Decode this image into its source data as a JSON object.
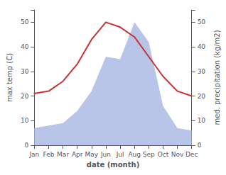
{
  "chart_data": {
    "type": "line",
    "categories": [
      "Jan",
      "Feb",
      "Mar",
      "Apr",
      "May",
      "Jun",
      "Jul",
      "Aug",
      "Sep",
      "Oct",
      "Nov",
      "Dec"
    ],
    "xlabel": "date (month)",
    "ylabel": "max temp (C)",
    "y2label": "med. precipitation (kg/m2)",
    "ylim": [
      0,
      55
    ],
    "yticks": [
      0,
      10,
      20,
      30,
      40,
      50
    ],
    "y2lim": [
      0,
      55
    ],
    "y2ticks": [
      0,
      10,
      20,
      30,
      40,
      50
    ],
    "grid": false,
    "series": [
      {
        "type": "area",
        "axis": "y2",
        "color": "#b8c4e8",
        "values": [
          7,
          8,
          9,
          14,
          22,
          36,
          35,
          50,
          42,
          16,
          7,
          6
        ]
      },
      {
        "type": "line",
        "color": "#c83232",
        "values": [
          21,
          22,
          26,
          33,
          43,
          50,
          48,
          44,
          36,
          28,
          22,
          20
        ]
      }
    ]
  }
}
